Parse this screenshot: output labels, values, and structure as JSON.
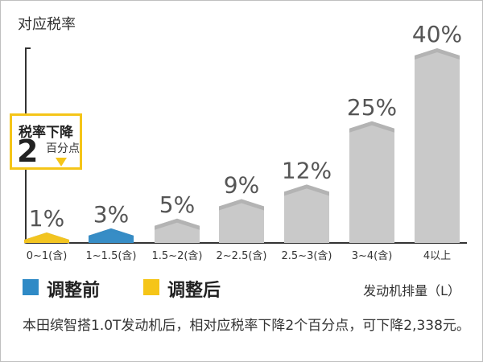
{
  "chart_data": {
    "type": "bar",
    "ylabel": "对应税率",
    "xlabel": "发动机排量（L）",
    "categories": [
      "0~1(含)",
      "1~1.5(含)",
      "1.5~2(含)",
      "2~2.5(含)",
      "2.5~3(含)",
      "3~4(含)",
      "4以上"
    ],
    "values": [
      1,
      3,
      5,
      9,
      12,
      25,
      40
    ],
    "value_labels": [
      "1%",
      "3%",
      "5%",
      "9%",
      "12%",
      "25%",
      "40%"
    ],
    "ylim": [
      0,
      40
    ],
    "grid": false,
    "highlight": {
      "before_index": 1,
      "after_index": 0
    }
  },
  "legend": [
    {
      "label": "调整前",
      "color": "#2f8ac6"
    },
    {
      "label": "调整后",
      "color": "#f5c518"
    }
  ],
  "callout": {
    "title": "税率下降",
    "number": "2",
    "unit": "百分点"
  },
  "note": "本田缤智搭1.0T发动机后，相对应税率下降2个百分点，可下降2,338元。",
  "colors": {
    "bar": "#c9c9c9",
    "bar_top": "#b3b3b3",
    "axis": "#333333",
    "before": "#2f8ac6",
    "after": "#f5c518"
  }
}
